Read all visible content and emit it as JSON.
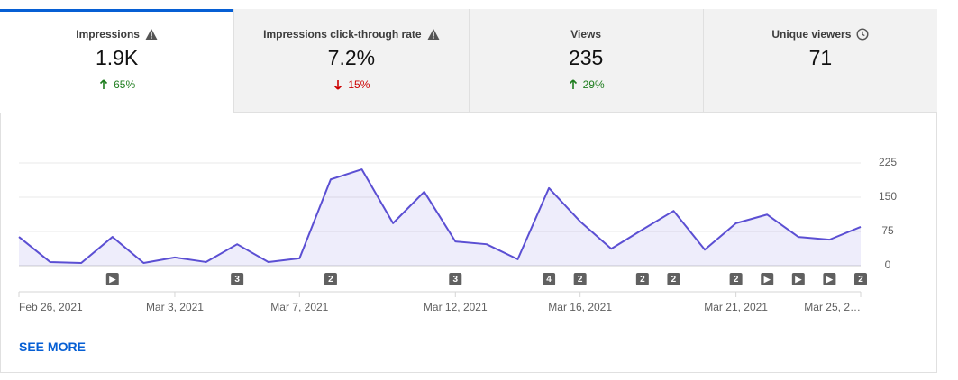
{
  "tabs": [
    {
      "label": "Impressions",
      "icon": "warning",
      "value": "1.9K",
      "change": "65%",
      "direction": "up",
      "selected": true
    },
    {
      "label": "Impressions click-through rate",
      "icon": "warning",
      "value": "7.2%",
      "change": "15%",
      "direction": "down",
      "selected": false
    },
    {
      "label": "Views",
      "icon": null,
      "value": "235",
      "change": "29%",
      "direction": "up",
      "selected": false
    },
    {
      "label": "Unique viewers",
      "icon": "clock",
      "value": "71",
      "change": null,
      "direction": null,
      "selected": false
    }
  ],
  "chart_data": {
    "type": "line",
    "categories": [
      "Feb 26, 2021",
      null,
      null,
      null,
      null,
      "Mar 3, 2021",
      null,
      null,
      null,
      "Mar 7, 2021",
      null,
      null,
      null,
      null,
      "Mar 12, 2021",
      null,
      null,
      null,
      "Mar 16, 2021",
      null,
      null,
      null,
      null,
      "Mar 21, 2021",
      null,
      null,
      null,
      "Mar 25, 2…"
    ],
    "values": [
      63,
      8,
      6,
      63,
      6,
      18,
      8,
      47,
      8,
      16,
      189,
      211,
      93,
      162,
      53,
      47,
      14,
      170,
      97,
      37,
      79,
      120,
      35,
      93,
      112,
      63,
      57,
      85
    ],
    "events": [
      null,
      null,
      null,
      "▶",
      null,
      null,
      null,
      "3",
      null,
      null,
      "2",
      null,
      null,
      null,
      "3",
      null,
      null,
      "4",
      "2",
      null,
      "2",
      "2",
      null,
      "2",
      "▶",
      "▶",
      "▶",
      "2"
    ],
    "color": "#5b4fd3",
    "area": true,
    "ylim": [
      0,
      225
    ],
    "yticks": [
      0,
      75,
      150,
      225
    ],
    "grid": true
  },
  "link": "SEE MORE"
}
